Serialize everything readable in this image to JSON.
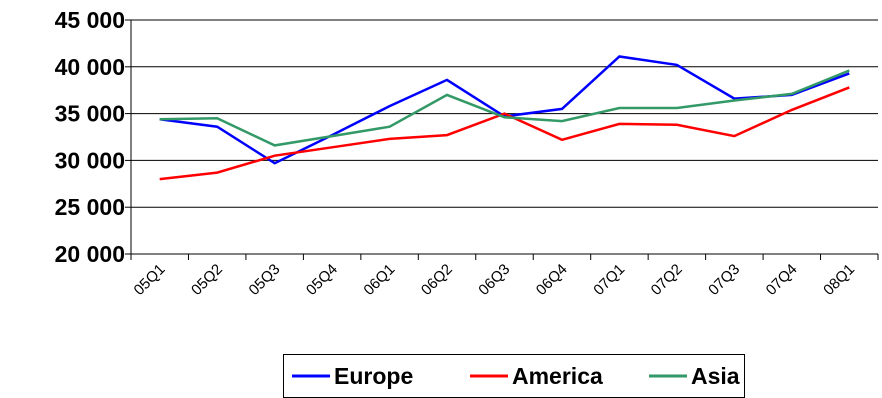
{
  "chart_data": {
    "type": "line",
    "title": "",
    "xlabel": "",
    "ylabel": "",
    "categories": [
      "05Q1",
      "05Q2",
      "05Q3",
      "05Q4",
      "06Q1",
      "06Q2",
      "06Q3",
      "06Q4",
      "07Q1",
      "07Q2",
      "07Q3",
      "07Q4",
      "08Q1"
    ],
    "ylim": [
      20000,
      45000
    ],
    "yticks": [
      20000,
      25000,
      30000,
      35000,
      40000,
      45000
    ],
    "ytick_labels": [
      "20 000",
      "25 000",
      "30 000",
      "35 000",
      "40 000",
      "45 000"
    ],
    "grid": true,
    "legend": "bottom",
    "series": [
      {
        "name": "Europe",
        "color": "#0000ff",
        "values": [
          34400,
          33600,
          29700,
          32700,
          35800,
          38600,
          34700,
          35500,
          41100,
          40200,
          36600,
          37000,
          39300
        ]
      },
      {
        "name": "America",
        "color": "#ff0000",
        "values": [
          28000,
          28700,
          30500,
          31400,
          32300,
          32700,
          35000,
          32200,
          33900,
          33800,
          32600,
          35400,
          37800
        ]
      },
      {
        "name": "Asia",
        "color": "#339966",
        "values": [
          34400,
          34500,
          31600,
          32600,
          33600,
          37000,
          34600,
          34200,
          35600,
          35600,
          36400,
          37100,
          39600
        ]
      }
    ]
  }
}
